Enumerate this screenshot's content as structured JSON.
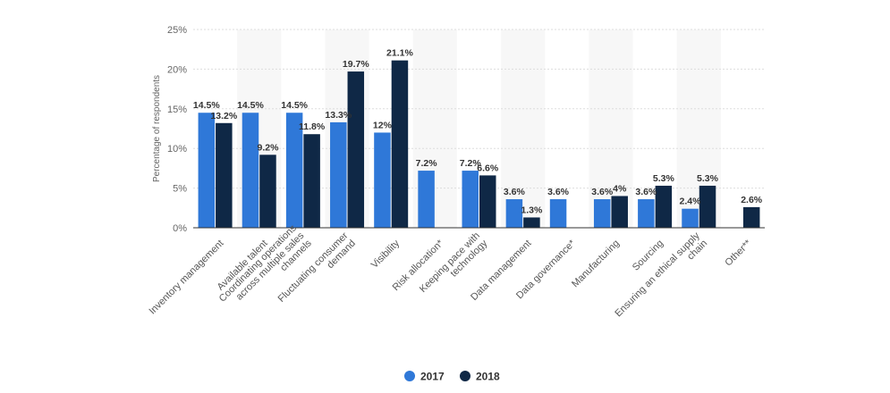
{
  "chart_data": {
    "type": "bar",
    "title": "",
    "xlabel": "",
    "ylabel": "Percentage of respondents",
    "ylim": [
      0,
      25
    ],
    "yticks": [
      "0%",
      "5%",
      "10%",
      "15%",
      "20%",
      "25%"
    ],
    "categories": [
      [
        "Inventory management"
      ],
      [
        "Available talent"
      ],
      [
        "Coordinating operations",
        "across multiple sales",
        "channels"
      ],
      [
        "Fluctuating consumer",
        "demand"
      ],
      [
        "Visibility"
      ],
      [
        "Risk allocation*"
      ],
      [
        "Keeping pace with",
        "technology"
      ],
      [
        "Data management"
      ],
      [
        "Data governance*"
      ],
      [
        "Manufacturing"
      ],
      [
        "Sourcing"
      ],
      [
        "Ensuring an ethical supply",
        "chain"
      ],
      [
        "Other**"
      ]
    ],
    "series": [
      {
        "name": "2017",
        "color": "#2f78d8",
        "values": [
          14.5,
          14.5,
          14.5,
          13.3,
          12,
          7.2,
          7.2,
          3.6,
          3.6,
          3.6,
          3.6,
          2.4,
          null
        ],
        "labels": [
          "14.5%",
          "14.5%",
          "14.5%",
          "13.3%",
          "12%",
          "7.2%",
          "7.2%",
          "3.6%",
          "3.6%",
          "3.6%",
          "3.6%",
          "2.4%",
          ""
        ]
      },
      {
        "name": "2018",
        "color": "#0f2846",
        "values": [
          13.2,
          9.2,
          11.8,
          19.7,
          21.1,
          null,
          6.6,
          1.3,
          null,
          4,
          5.3,
          5.3,
          2.6
        ],
        "labels": [
          "13.2%",
          "9.2%",
          "11.8%",
          "19.7%",
          "21.1%",
          "",
          "6.6%",
          "1.3%",
          "",
          "4%",
          "5.3%",
          "5.3%",
          "2.6%"
        ]
      }
    ],
    "legend": {
      "position": "bottom-center"
    },
    "grid": true
  }
}
